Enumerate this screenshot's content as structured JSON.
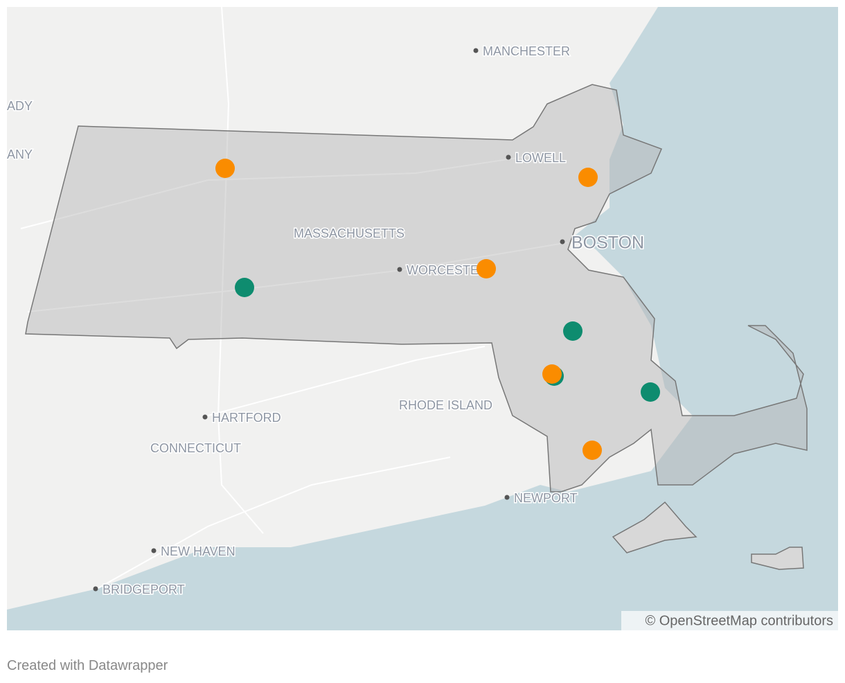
{
  "map": {
    "labels": {
      "manchester": "MANCHESTER",
      "ady": "ADY",
      "any": "ANY",
      "lowell": "LOWELL",
      "massachusetts": "MASSACHUSETTS",
      "boston": "BOSTON",
      "worcester": "WORCESTER",
      "rhode_island": "RHODE ISLAND",
      "hartford": "HARTFORD",
      "connecticut": "CONNECTICUT",
      "newport": "NEWPORT",
      "new_haven": "NEW HAVEN",
      "bridgeport": "BRIDGEPORT"
    },
    "attribution": "© OpenStreetMap contributors"
  },
  "footer": "Created with Datawrapper"
}
